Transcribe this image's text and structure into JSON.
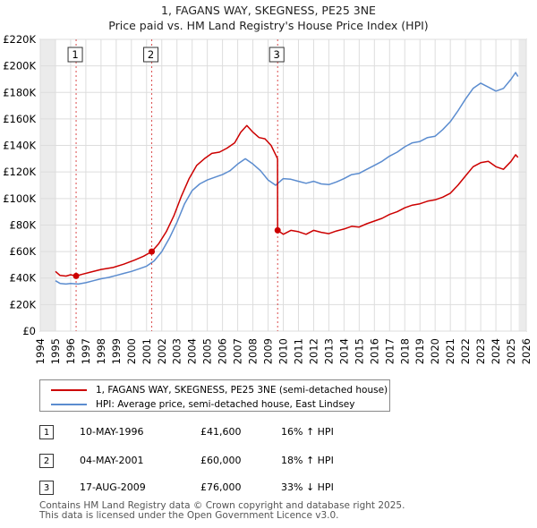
{
  "chart_data": {
    "type": "line",
    "title": "1, FAGANS WAY, SKEGNESS, PE25 3NE",
    "subtitle": "Price paid vs. HM Land Registry's House Price Index (HPI)",
    "xlim": [
      1994,
      2026
    ],
    "ylim": [
      0,
      220000
    ],
    "x_ticks": [
      1994,
      1995,
      1996,
      1997,
      1998,
      1999,
      2000,
      2001,
      2002,
      2003,
      2004,
      2005,
      2006,
      2007,
      2008,
      2009,
      2010,
      2011,
      2012,
      2013,
      2014,
      2015,
      2016,
      2017,
      2018,
      2019,
      2020,
      2021,
      2022,
      2023,
      2024,
      2025,
      2026
    ],
    "y_ticks": [
      0,
      20000,
      40000,
      60000,
      80000,
      100000,
      120000,
      140000,
      160000,
      180000,
      200000,
      220000
    ],
    "y_tick_labels": [
      "£0",
      "£20K",
      "£40K",
      "£60K",
      "£80K",
      "£100K",
      "£120K",
      "£140K",
      "£160K",
      "£180K",
      "£200K",
      "£220K"
    ],
    "series": [
      {
        "name": "1, FAGANS WAY, SKEGNESS, PE25 3NE (semi-detached house)",
        "color": "#cc0000",
        "points": [
          [
            1995.0,
            45000
          ],
          [
            1995.3,
            42000
          ],
          [
            1995.7,
            41500
          ],
          [
            1996.0,
            42500
          ],
          [
            1996.36,
            41600
          ],
          [
            1996.8,
            43000
          ],
          [
            1997.3,
            44500
          ],
          [
            1998.0,
            46500
          ],
          [
            1998.8,
            48000
          ],
          [
            1999.5,
            50500
          ],
          [
            2000.2,
            53500
          ],
          [
            2000.8,
            56500
          ],
          [
            2001.34,
            60000
          ],
          [
            2001.8,
            66000
          ],
          [
            2002.3,
            75000
          ],
          [
            2002.8,
            87000
          ],
          [
            2003.3,
            102000
          ],
          [
            2003.8,
            115000
          ],
          [
            2004.3,
            125000
          ],
          [
            2004.8,
            130000
          ],
          [
            2005.3,
            134000
          ],
          [
            2005.8,
            135000
          ],
          [
            2006.3,
            138000
          ],
          [
            2006.8,
            142000
          ],
          [
            2007.2,
            150000
          ],
          [
            2007.6,
            155000
          ],
          [
            2008.0,
            150000
          ],
          [
            2008.4,
            146000
          ],
          [
            2008.8,
            145000
          ],
          [
            2009.2,
            140000
          ],
          [
            2009.5,
            133000
          ],
          [
            2009.62,
            130000
          ],
          [
            2009.63,
            76000
          ],
          [
            2010.0,
            73000
          ],
          [
            2010.5,
            76000
          ],
          [
            2011.0,
            75000
          ],
          [
            2011.5,
            73000
          ],
          [
            2012.0,
            76000
          ],
          [
            2012.5,
            74500
          ],
          [
            2013.0,
            73500
          ],
          [
            2013.5,
            75500
          ],
          [
            2014.0,
            77000
          ],
          [
            2014.5,
            79000
          ],
          [
            2015.0,
            78500
          ],
          [
            2015.5,
            81000
          ],
          [
            2016.0,
            83000
          ],
          [
            2016.5,
            85000
          ],
          [
            2017.0,
            88000
          ],
          [
            2017.5,
            90000
          ],
          [
            2018.0,
            93000
          ],
          [
            2018.5,
            95000
          ],
          [
            2019.0,
            96000
          ],
          [
            2019.5,
            98000
          ],
          [
            2020.0,
            99000
          ],
          [
            2020.5,
            101000
          ],
          [
            2021.0,
            104000
          ],
          [
            2021.5,
            110000
          ],
          [
            2022.0,
            117000
          ],
          [
            2022.5,
            124000
          ],
          [
            2023.0,
            127000
          ],
          [
            2023.5,
            128000
          ],
          [
            2024.0,
            124000
          ],
          [
            2024.5,
            122000
          ],
          [
            2025.0,
            128000
          ],
          [
            2025.3,
            133000
          ],
          [
            2025.45,
            131000
          ]
        ]
      },
      {
        "name": "HPI: Average price, semi-detached house, East Lindsey",
        "color": "#5b8ccf",
        "points": [
          [
            1995.0,
            38000
          ],
          [
            1995.3,
            36000
          ],
          [
            1995.7,
            35500
          ],
          [
            1996.0,
            36000
          ],
          [
            1996.5,
            35500
          ],
          [
            1997.0,
            36500
          ],
          [
            1997.5,
            38000
          ],
          [
            1998.0,
            39500
          ],
          [
            1998.5,
            40500
          ],
          [
            1999.0,
            42000
          ],
          [
            1999.5,
            43500
          ],
          [
            2000.0,
            45000
          ],
          [
            2000.5,
            47000
          ],
          [
            2001.0,
            49000
          ],
          [
            2001.5,
            53000
          ],
          [
            2002.0,
            60000
          ],
          [
            2002.5,
            70000
          ],
          [
            2003.0,
            82000
          ],
          [
            2003.5,
            96000
          ],
          [
            2004.0,
            106000
          ],
          [
            2004.5,
            111000
          ],
          [
            2005.0,
            114000
          ],
          [
            2005.5,
            116000
          ],
          [
            2006.0,
            118000
          ],
          [
            2006.5,
            121000
          ],
          [
            2007.0,
            126000
          ],
          [
            2007.5,
            130000
          ],
          [
            2008.0,
            126000
          ],
          [
            2008.5,
            121000
          ],
          [
            2009.0,
            114000
          ],
          [
            2009.5,
            110000
          ],
          [
            2010.0,
            115000
          ],
          [
            2010.5,
            114500
          ],
          [
            2011.0,
            113000
          ],
          [
            2011.5,
            111500
          ],
          [
            2012.0,
            113000
          ],
          [
            2012.5,
            111000
          ],
          [
            2013.0,
            110500
          ],
          [
            2013.5,
            112500
          ],
          [
            2014.0,
            115000
          ],
          [
            2014.5,
            118000
          ],
          [
            2015.0,
            119000
          ],
          [
            2015.5,
            122000
          ],
          [
            2016.0,
            125000
          ],
          [
            2016.5,
            128000
          ],
          [
            2017.0,
            132000
          ],
          [
            2017.5,
            135000
          ],
          [
            2018.0,
            139000
          ],
          [
            2018.5,
            142000
          ],
          [
            2019.0,
            143000
          ],
          [
            2019.5,
            146000
          ],
          [
            2020.0,
            147000
          ],
          [
            2020.5,
            152000
          ],
          [
            2021.0,
            158000
          ],
          [
            2021.5,
            166000
          ],
          [
            2022.0,
            175000
          ],
          [
            2022.5,
            183000
          ],
          [
            2023.0,
            187000
          ],
          [
            2023.5,
            184000
          ],
          [
            2024.0,
            181000
          ],
          [
            2024.5,
            183000
          ],
          [
            2025.0,
            190000
          ],
          [
            2025.3,
            195000
          ],
          [
            2025.45,
            192000
          ]
        ]
      }
    ],
    "sales": [
      {
        "label": "1",
        "x": 1996.36,
        "price": 41600
      },
      {
        "label": "2",
        "x": 2001.34,
        "price": 60000
      },
      {
        "label": "3",
        "x": 2009.63,
        "price": 76000
      }
    ],
    "legend_position": "below"
  },
  "table": {
    "rows": [
      {
        "num": "1",
        "date": "10-MAY-1996",
        "price": "£41,600",
        "hpi": "16% ↑ HPI"
      },
      {
        "num": "2",
        "date": "04-MAY-2001",
        "price": "£60,000",
        "hpi": "18% ↑ HPI"
      },
      {
        "num": "3",
        "date": "17-AUG-2009",
        "price": "£76,000",
        "hpi": "33% ↓ HPI"
      }
    ]
  },
  "footer": {
    "line1": "Contains HM Land Registry data © Crown copyright and database right 2025.",
    "line2": "This data is licensed under the Open Government Licence v3.0."
  }
}
